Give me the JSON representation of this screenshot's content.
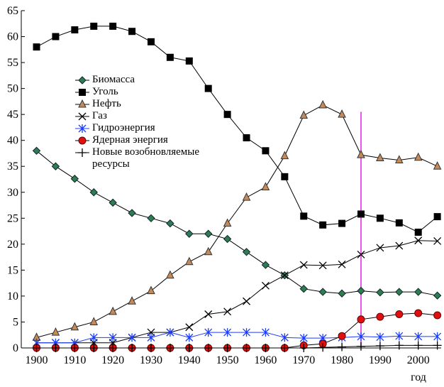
{
  "chart_data": {
    "type": "line",
    "x": [
      1900,
      1905,
      1910,
      1915,
      1920,
      1925,
      1930,
      1935,
      1940,
      1945,
      1950,
      1955,
      1960,
      1965,
      1970,
      1975,
      1980,
      1985,
      1990,
      1995,
      2000,
      2005
    ],
    "xlim": [
      1896,
      2006
    ],
    "xticks": [
      1900,
      1910,
      1920,
      1930,
      1940,
      1950,
      1960,
      1970,
      1980,
      1990,
      2000
    ],
    "ylim": [
      0,
      65
    ],
    "yticks": [
      0,
      5,
      10,
      15,
      20,
      25,
      30,
      35,
      40,
      45,
      50,
      55,
      60,
      65
    ],
    "x_label": "год",
    "vline": {
      "x": 1985,
      "top": 45.5,
      "color": "#e020e0"
    },
    "series": [
      {
        "name": "Биомасса",
        "marker": "diamond",
        "color": "#2e7d4f",
        "line_color": "#000",
        "values": [
          38,
          35,
          32.6,
          30,
          28,
          26,
          25,
          24,
          22,
          22,
          21,
          18.5,
          16,
          14,
          11.4,
          10.8,
          10.5,
          11,
          10.7,
          10.8,
          10.8,
          10.1
        ]
      },
      {
        "name": "Уголь",
        "marker": "square",
        "color": "#000",
        "line_color": "#000",
        "values": [
          58,
          60,
          61.3,
          62,
          62,
          61,
          59,
          56,
          55.3,
          50,
          45,
          40.5,
          38,
          33,
          25.4,
          23.7,
          24,
          25.8,
          25,
          24.1,
          22.3,
          25.3
        ]
      },
      {
        "name": "Нефть",
        "marker": "triangle",
        "color": "#c48a5a",
        "line_color": "#000",
        "values": [
          2,
          3,
          4,
          5,
          7,
          9,
          11,
          14,
          16.6,
          18.5,
          24,
          29,
          31,
          37,
          44.8,
          46.8,
          45,
          37.2,
          36.6,
          36.2,
          36.7,
          35
        ]
      },
      {
        "name": "Газ",
        "marker": "cross",
        "color": "#000",
        "line_color": "#000",
        "values": [
          1,
          1,
          1,
          1,
          1,
          2,
          3,
          3,
          4,
          6.5,
          7,
          9,
          12,
          14,
          16,
          15.9,
          16.1,
          18,
          19.3,
          19.7,
          20.7,
          20.6
        ]
      },
      {
        "name": "Гидроэнергия",
        "marker": "star",
        "color": "#1a3cff",
        "line_color": "#1a3cff",
        "values": [
          1,
          1,
          1,
          2,
          2,
          2,
          2,
          3,
          2,
          3,
          3,
          3,
          3,
          2,
          1.9,
          1.9,
          2,
          2.2,
          2.1,
          2.3,
          2.2,
          2.2
        ]
      },
      {
        "name": "Ядерная энергия",
        "marker": "circle",
        "color": "#e01010",
        "line_color": "#000",
        "values": [
          0,
          0,
          0,
          0,
          0,
          0,
          0,
          0,
          0,
          0,
          0,
          0,
          0,
          0,
          0.5,
          0.8,
          2.3,
          5.5,
          6,
          6.5,
          6.7,
          6.3
        ]
      },
      {
        "name": "Новые возобновляемые ресурсы",
        "marker": "plus",
        "color": "#000",
        "line_color": "#000",
        "values": [
          0,
          0,
          0,
          0,
          0,
          0,
          0,
          0,
          0,
          0,
          0,
          0,
          0,
          0,
          0,
          0.1,
          0.2,
          0.3,
          0.4,
          0.5,
          0.5,
          0.5
        ]
      }
    ]
  }
}
